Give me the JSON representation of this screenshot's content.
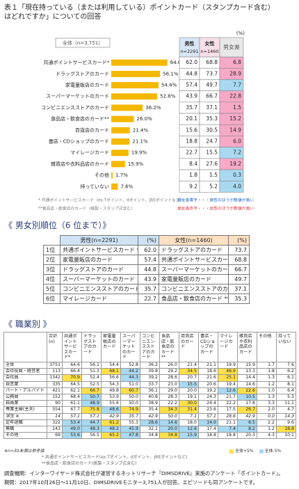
{
  "header": {
    "title_lines": [
      "表１「現在持っている（または利用している）ポイントカード（スタンプカード含む）",
      "はどれですか」についての回答"
    ]
  },
  "chart_data": {
    "type": "bar",
    "orientation": "horizontal",
    "series_label": "全体（n=3,751）",
    "color": "#f5b800",
    "categories": [
      "共通ポイントサービスカード*",
      "ドラッグストアのカード",
      "家電量販店のカード",
      "スーパーマーケットのカード",
      "コンビニエンスストアのカード",
      "食品店・飲食店のカード**",
      "百貨店のカード",
      "書店・CDショップのカード",
      "マイレージカード",
      "雑貨店や衣料品店のカード",
      "その他",
      "持っていない"
    ],
    "values": [
      64.6,
      56.1,
      54.4,
      52.8,
      36.2,
      26.0,
      21.4,
      21.1,
      19.9,
      15.9,
      1.7,
      7.6
    ],
    "value_labels": [
      "64.6%",
      "56.1%",
      "54.4%",
      "52.8%",
      "36.2%",
      "26.0%",
      "21.4%",
      "21.1%",
      "19.9%",
      "15.9%",
      "1.7%",
      "7.6%"
    ]
  },
  "gender_table": {
    "unit": "(%)",
    "columns": [
      {
        "name": "男性",
        "n": "n=2291"
      },
      {
        "name": "女性",
        "n": "n=1460"
      },
      {
        "name": "男女差"
      }
    ],
    "higher_female_color": "#f6a9c8",
    "higher_male_color": "#a9d9f1",
    "rows": [
      [
        "62.0",
        "68.8",
        "6.8"
      ],
      [
        "44.8",
        "73.7",
        "28.9"
      ],
      [
        "57.4",
        "49.7",
        "7.7"
      ],
      [
        "43.9",
        "66.7",
        "22.8"
      ],
      [
        "35.7",
        "37.1",
        "1.5"
      ],
      [
        "20.1",
        "35.3",
        "15.2"
      ],
      [
        "15.6",
        "30.5",
        "14.9"
      ],
      [
        "18.8",
        "24.7",
        "6.0"
      ],
      [
        "22.7",
        "15.5",
        "7.2"
      ],
      [
        "8.4",
        "27.6",
        "19.2"
      ],
      [
        "1.8",
        "1.5",
        "0.3"
      ],
      [
        "9.2",
        "5.2",
        "4.0"
      ]
    ],
    "legend": [
      {
        "text": "男女差青字・・・男性のほうが数値が高い",
        "color": "#1f5fbf"
      },
      {
        "text": "男女差赤字・・・女性のほうが数値が高い",
        "color": "#e0303a"
      }
    ]
  },
  "notes": [
    "* 共通ポイントサービスカード（ex.Tポイント、dポイント、JREポイントなど）",
    "**食品店・飲食店のカード（紙製・スタンプ式含む）"
  ],
  "ranking": {
    "title": "《 男女別順位（6 位まで）》",
    "male_header": "男性(n=2291)",
    "female_header": "女性(n=1460)",
    "unit": "(%)",
    "male_color": "#cfe3f5",
    "female_color": "#fde0c2",
    "rows": [
      {
        "rank": "1位",
        "male": {
          "name": "共通ポイントサービスカード *",
          "value": "62.0"
        },
        "female": {
          "name": "ドラッグストアのカード",
          "value": "73.7"
        }
      },
      {
        "rank": "2位",
        "male": {
          "name": "家電量販店のカード",
          "value": "57.4"
        },
        "female": {
          "name": "共通ポイントサービスカード *",
          "value": "68.8"
        }
      },
      {
        "rank": "3位",
        "male": {
          "name": "ドラッグストアのカード",
          "value": "44.8"
        },
        "female": {
          "name": "スーパーマーケットのカード",
          "value": "66.7"
        }
      },
      {
        "rank": "4位",
        "male": {
          "name": "スーパーマーケットのカード",
          "value": "43.9"
        },
        "female": {
          "name": "家電量販店のカード",
          "value": "49.7"
        }
      },
      {
        "rank": "5位",
        "male": {
          "name": "コンビニエンスストアのカード",
          "value": "35.7"
        },
        "female": {
          "name": "コンビニエンスストアのカード",
          "value": "37.1"
        }
      },
      {
        "rank": "6位",
        "male": {
          "name": "マイレージカード",
          "value": "22.7"
        },
        "female": {
          "name": "食品店・飲食店のカード **",
          "value": "35.3"
        }
      }
    ]
  },
  "occupation": {
    "title": "《 職業別 》",
    "columns": [
      "合計(n)",
      "共通ポイントサービスカード*",
      "ドラッグストアのカード",
      "家電量販店のカード",
      "スーパーマーケットのカード",
      "コンビニエンスストアのカード",
      "食品店・飲食店のカード**",
      "百貨店のカード",
      "書店・CDショップのカード",
      "マイレージカード",
      "雑貨店や衣料品店のカード",
      "その他",
      "持っていない"
    ],
    "highlight": {
      "threshold": 5,
      "min_n": 30,
      "up_color": "#ffe04a",
      "down_color": "#a9d9f1"
    },
    "rows": [
      {
        "label": "全体",
        "n": 3751,
        "values": [
          "64.6",
          "56.1",
          "54.4",
          "52.8",
          "36.2",
          "26.0",
          "21.4",
          "21.1",
          "19.9",
          "15.9",
          "1.7",
          "7.6"
        ]
      },
      {
        "label": "会社役員・経営者",
        "n": 113,
        "values": [
          "66.4",
          "51.3",
          "68.1",
          "44.2",
          "39.8",
          "29.2",
          "34.5",
          "18.6",
          "46.9",
          "13.3",
          "1.8",
          "6.2"
        ]
      },
      {
        "label": "会社員",
        "n": 1342,
        "values": [
          "70.9",
          "52.4",
          "56.6",
          "44.3",
          "39.2",
          "28.6",
          "20.7",
          "21.6",
          "25.1",
          "14.4",
          "1.3",
          "6.1"
        ]
      },
      {
        "label": "自営業",
        "n": 335,
        "values": [
          "64.5",
          "52.5",
          "54.3",
          "51.0",
          "33.7",
          "23.0",
          "15.5",
          "20.6",
          "19.4",
          "14.6",
          "1.2",
          "8.1"
        ]
      },
      {
        "label": "パート・アルバイト",
        "n": 421,
        "values": [
          "62.1",
          "66.7",
          "49.8",
          "60.7",
          "36.1",
          "29.0",
          "20.0",
          "19.2",
          "12.6",
          "22.6",
          "1.0",
          "6.4"
        ]
      },
      {
        "label": "公務員",
        "n": 152,
        "values": [
          "68.4",
          "50.7",
          "53.9",
          "50.0",
          "40.8",
          "28.3",
          "19.1",
          "24.3",
          "21.7",
          "10.5",
          "1.3",
          "5.3"
        ]
      },
      {
        "label": "自由業",
        "n": 90,
        "values": [
          "61.1",
          "48.9",
          "55.6",
          "50.0",
          "38.9",
          "22.2",
          "30.0",
          "24.4",
          "22.2",
          "17.8",
          "3.3",
          "11.1"
        ]
      },
      {
        "label": "専業主婦(主夫)",
        "n": 554,
        "values": [
          "67.7",
          "75.8",
          "48.6",
          "74.9",
          "35.4",
          "34.3",
          "31.4",
          "23.6",
          "17.5",
          "26.7",
          "2.0",
          "4.7"
        ]
      },
      {
        "label": "学生 ※",
        "n": 14,
        "values": [
          "57.1",
          "57.1",
          "42.9",
          "35.7",
          "42.9",
          "50.0",
          "7.1",
          "57.1",
          "28.6",
          "42.9",
          "0.0",
          "14.3"
        ]
      },
      {
        "label": "定年退職",
        "n": 322,
        "values": [
          "53.4",
          "44.7",
          "61.2",
          "55.3",
          "28.6",
          "14.6",
          "18.0",
          "14.0",
          "21.1",
          "6.5",
          "2.2",
          "9.6"
        ]
      },
      {
        "label": "無職",
        "n": 143,
        "values": [
          "49.0",
          "48.3",
          "48.2",
          "45.9",
          "32.1",
          "20.0",
          "12.6",
          "17.4",
          "7.4",
          "8.2",
          "1.2",
          "18.8"
        ]
      },
      {
        "label": "その他",
        "n": 69,
        "values": [
          "53.6",
          "56.5",
          "65.2",
          "47.8",
          "34.8",
          "34.8",
          "15.9",
          "18.8",
          "18.8",
          "20.3",
          "4.3",
          "10.1"
        ]
      }
    ],
    "note": "※n=30未満は参考値",
    "notes": [
      "* 共通ポイントサービスカード(ex.Tポイント、dポイント、JREポイントなど)",
      "**食品店・飲食店のカード(紙製・スタンプ式含む)"
    ],
    "legend": [
      "全体+5%",
      "全体-5%"
    ]
  },
  "footer": [
    "調査機関：インターワイヤード株式会社が運営するネットリサーチ『DIMSDRIVE』実施のアンケート「ポイントカード」。",
    "期間：2017年10月26日～11月10日、DIMSDRIVEモニター3,751人が回答。エピソードも同アンケートです。"
  ]
}
